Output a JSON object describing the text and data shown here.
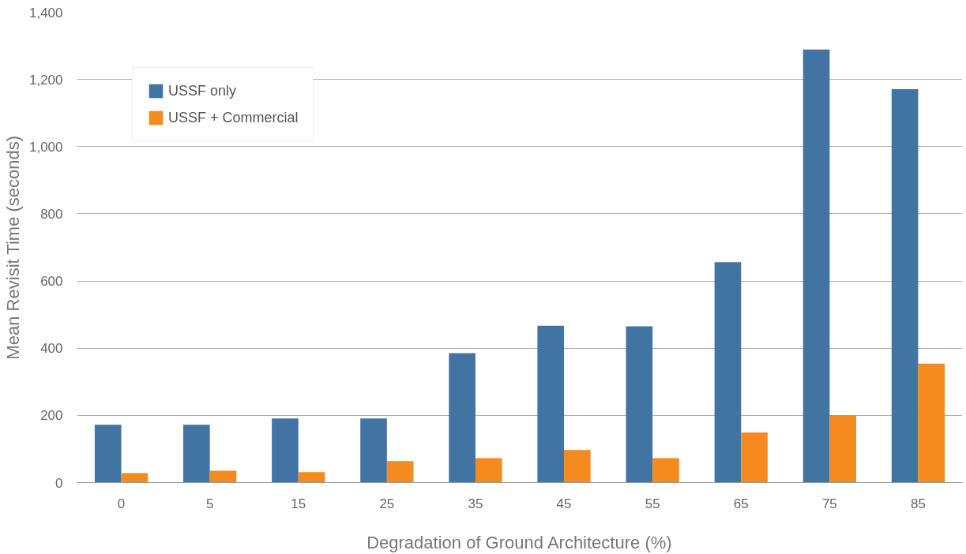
{
  "chart_data": {
    "type": "bar",
    "xlabel": "Degradation of Ground Architecture (%)",
    "ylabel": "Mean Revisit Time (seconds)",
    "categories": [
      "0",
      "5",
      "15",
      "25",
      "35",
      "45",
      "55",
      "65",
      "75",
      "85"
    ],
    "series": [
      {
        "name": "USSF only",
        "color": "#4174a3",
        "values": [
          172,
          172,
          191,
          191,
          385,
          467,
          465,
          656,
          1289,
          1171
        ]
      },
      {
        "name": "USSF + Commercial",
        "color": "#f58a1f",
        "values": [
          28,
          35,
          31,
          64,
          73,
          97,
          73,
          149,
          201,
          354
        ]
      }
    ],
    "ylim": [
      0,
      1400
    ],
    "yticks": [
      0,
      200,
      400,
      600,
      800,
      {
        "value": 1000,
        "label": "1,000"
      },
      {
        "value": 1200,
        "label": "1,200"
      },
      {
        "value": 1400,
        "label": "1,400"
      }
    ],
    "grid": "y",
    "legend": "top left"
  }
}
